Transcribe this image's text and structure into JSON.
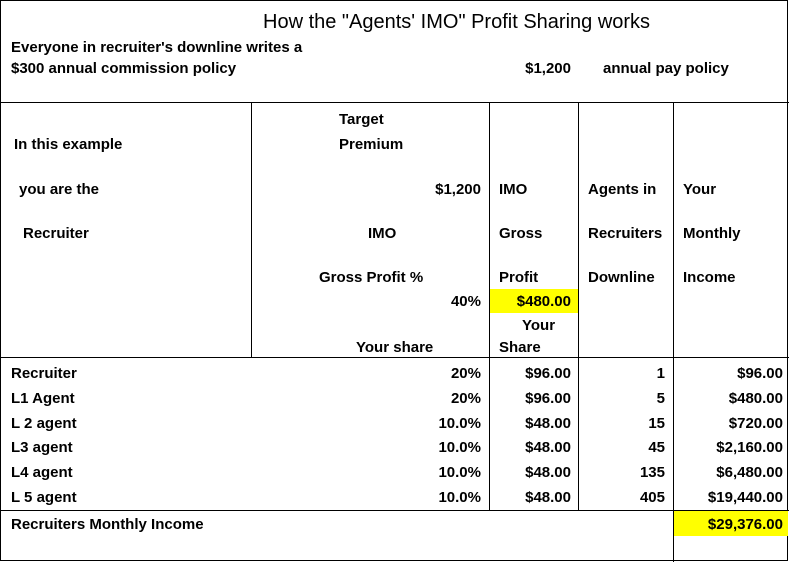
{
  "title": "How the \"Agents' IMO\" Profit Sharing works",
  "intro": {
    "line1": "Everyone in recruiter's downline writes a",
    "line2": "$300 annual commission policy",
    "annual_amount": "$1,200",
    "annual_label": "annual pay policy"
  },
  "header": {
    "left": [
      "In this example",
      "you are the",
      "Recruiter"
    ],
    "target": [
      "Target",
      "Premium"
    ],
    "target_value": "$1,200",
    "imo_label": [
      "IMO",
      "Gross Profit %"
    ],
    "imo_percent": "40%",
    "your_share": "Your share",
    "gross": [
      "IMO",
      "Gross",
      "Profit"
    ],
    "gross_value": "$480.00",
    "share": [
      "Your",
      "Share"
    ],
    "agents": [
      "Agents in",
      "Recruiters",
      "Downline"
    ],
    "income": [
      "Your",
      "Monthly",
      "Income"
    ]
  },
  "rows": [
    {
      "level": "Recruiter",
      "pct": "20%",
      "share": "$96.00",
      "agents": "1",
      "income": "$96.00"
    },
    {
      "level": "L1 Agent",
      "pct": "20%",
      "share": "$96.00",
      "agents": "5",
      "income": "$480.00"
    },
    {
      "level": "L 2 agent",
      "pct": "10.0%",
      "share": "$48.00",
      "agents": "15",
      "income": "$720.00"
    },
    {
      "level": "L3 agent",
      "pct": "10.0%",
      "share": "$48.00",
      "agents": "45",
      "income": "$2,160.00"
    },
    {
      "level": "L4 agent",
      "pct": "10.0%",
      "share": "$48.00",
      "agents": "135",
      "income": "$6,480.00"
    },
    {
      "level": "L 5 agent",
      "pct": "10.0%",
      "share": "$48.00",
      "agents": "405",
      "income": "$19,440.00"
    }
  ],
  "total": {
    "label": "Recruiters Monthly Income",
    "value": "$29,376.00"
  },
  "colors": {
    "highlight": "#ffff00",
    "border": "#000000"
  }
}
